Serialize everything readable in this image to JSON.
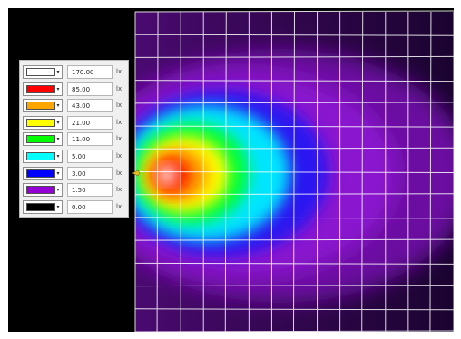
{
  "legend": {
    "unit": "lx",
    "levels": [
      {
        "value": "170.00",
        "color": "#ffffff"
      },
      {
        "value": "85.00",
        "color": "#ff0000"
      },
      {
        "value": "43.00",
        "color": "#ffa500"
      },
      {
        "value": "21.00",
        "color": "#ffff00"
      },
      {
        "value": "11.00",
        "color": "#00ff00"
      },
      {
        "value": "5.00",
        "color": "#00ffff"
      },
      {
        "value": "3.00",
        "color": "#0000ff"
      },
      {
        "value": "1.50",
        "color": "#9400d3"
      },
      {
        "value": "0.00",
        "color": "#000000"
      }
    ]
  },
  "colors": {
    "grid": "#ffffff",
    "background": "#000000",
    "luminaire_marker": "#e0c020"
  },
  "icons": {
    "dropdown": "chevron-down-icon",
    "luminaire": "luminaire-icon"
  }
}
